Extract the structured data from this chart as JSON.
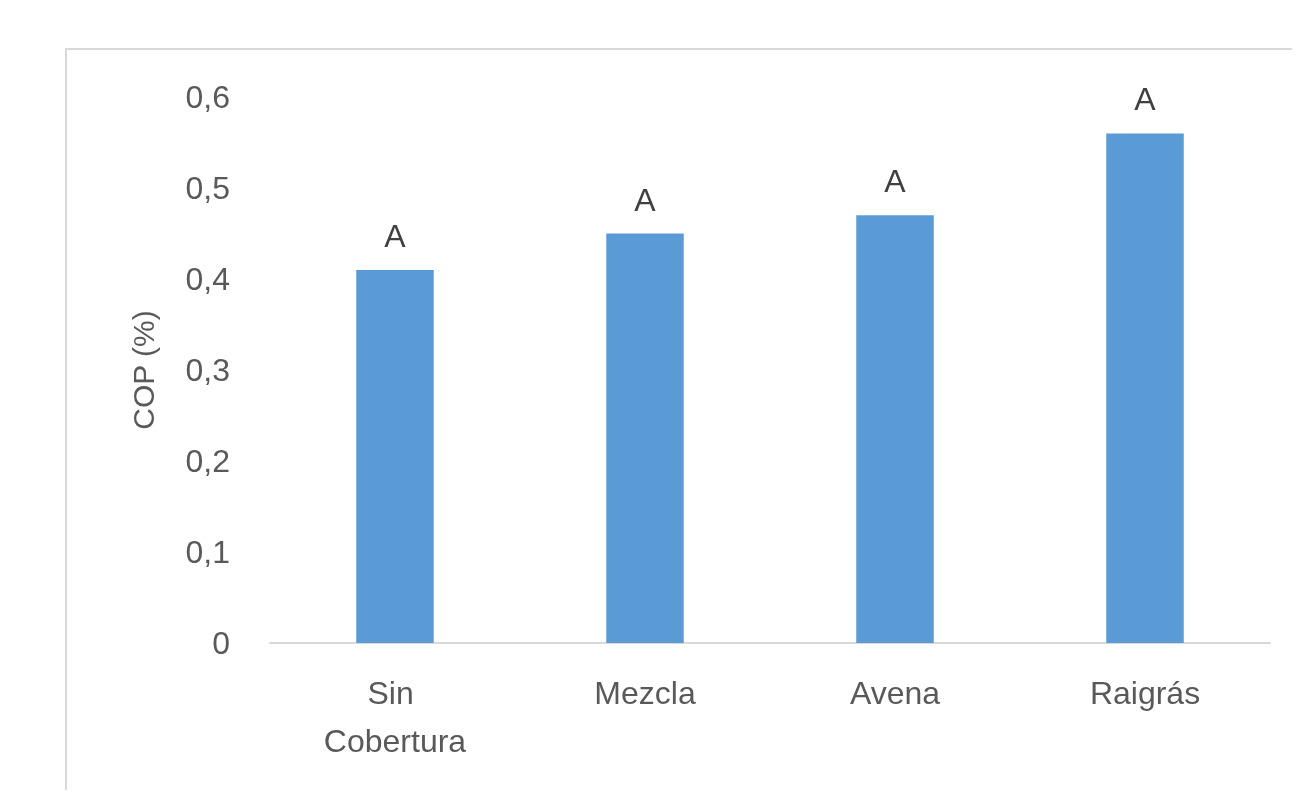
{
  "chart_data": {
    "type": "bar",
    "ylabel": "COP (%)",
    "categories": [
      "Sin Cobertura",
      "Mezcla",
      "Avena",
      "Raigrás"
    ],
    "values": [
      0.41,
      0.45,
      0.47,
      0.56
    ],
    "color": "#5b9bd5",
    "ylim": [
      0,
      0.6
    ],
    "yticks": [
      {
        "value": 0,
        "label": "0"
      },
      {
        "value": 0.1,
        "label": "0,1"
      },
      {
        "value": 0.2,
        "label": "0,2"
      },
      {
        "value": 0.3,
        "label": "0,3"
      },
      {
        "value": 0.4,
        "label": "0,4"
      },
      {
        "value": 0.5,
        "label": "0,5"
      },
      {
        "value": 0.6,
        "label": "0,6"
      }
    ],
    "grid": false,
    "annotations": [
      {
        "text": "A",
        "x": "Sin Cobertura",
        "y": 0.41
      },
      {
        "text": "A",
        "x": "Mezcla",
        "y": 0.45
      },
      {
        "text": "A",
        "x": "Avena",
        "y": 0.47
      },
      {
        "text": "A",
        "x": "Raigrás",
        "y": 0.56
      }
    ]
  }
}
